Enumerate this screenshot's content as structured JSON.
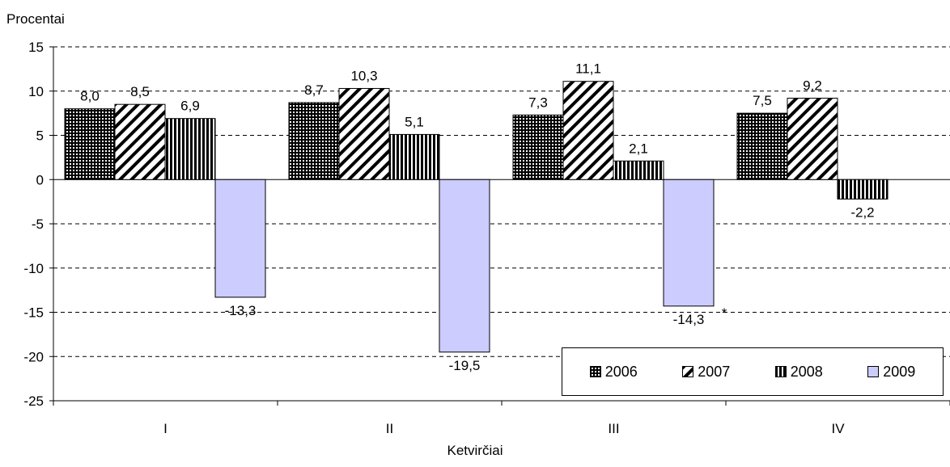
{
  "chart_data": {
    "type": "bar",
    "ylabel": "Procentai",
    "xlabel": "Ketvirčiai",
    "categories": [
      "I",
      "II",
      "III",
      "IV"
    ],
    "ylim": [
      -25,
      15
    ],
    "yticks": [
      15,
      10,
      5,
      0,
      -5,
      -10,
      -15,
      -20,
      -25
    ],
    "ytick_labels": [
      "15",
      "10",
      "5",
      "0",
      "-5",
      "-10",
      "-15",
      "-20",
      "-25"
    ],
    "grid": true,
    "legend_position": "bottom-right",
    "series": [
      {
        "name": "2006",
        "pattern": "grid",
        "color": "#000000",
        "values": [
          8.0,
          8.7,
          7.3,
          7.5
        ],
        "labels": [
          "8,0",
          "8,7",
          "7,3",
          "7,5"
        ]
      },
      {
        "name": "2007",
        "pattern": "diagonal",
        "color": "#000000",
        "values": [
          8.5,
          10.3,
          11.1,
          9.2
        ],
        "labels": [
          "8,5",
          "10,3",
          "11,1",
          "9,2"
        ]
      },
      {
        "name": "2008",
        "pattern": "vertical",
        "color": "#000000",
        "values": [
          6.9,
          5.1,
          2.1,
          -2.2
        ],
        "labels": [
          "6,9",
          "5,1",
          "2,1",
          "-2,2"
        ]
      },
      {
        "name": "2009",
        "pattern": "solid",
        "color": "#ccccff",
        "values": [
          -13.3,
          -19.5,
          -14.3,
          null
        ],
        "labels": [
          "-13,3",
          "-19,5",
          "-14,3",
          ""
        ]
      }
    ],
    "annotations": [
      {
        "text": "*",
        "category": "III",
        "series": "2009"
      }
    ]
  }
}
